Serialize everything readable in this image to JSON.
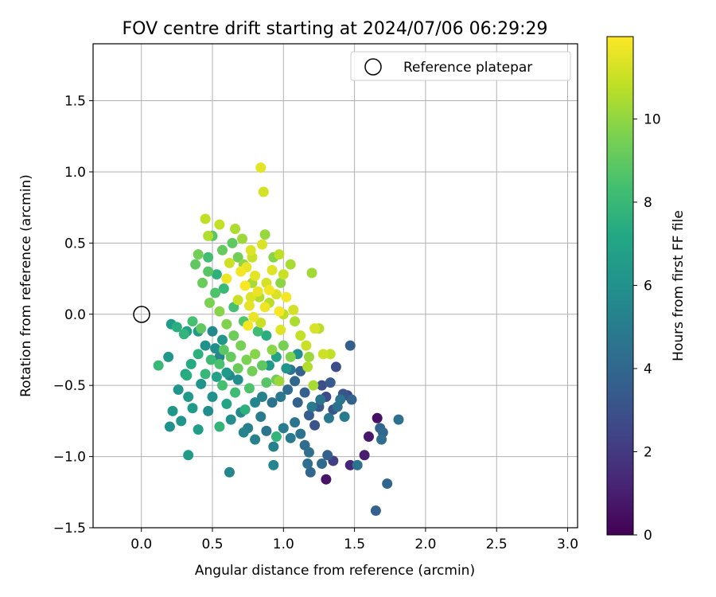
{
  "chart_data": {
    "type": "scatter",
    "title": "FOV centre drift starting at 2024/07/06 06:29:29",
    "xlabel": "Angular distance from reference (arcmin)",
    "ylabel": "Rotation from reference (arcmin)",
    "xlim": [
      -0.34,
      3.07
    ],
    "ylim": [
      -1.5,
      1.9
    ],
    "xticks": [
      "0.0",
      "0.5",
      "1.0",
      "1.5",
      "2.0",
      "2.5",
      "3.0"
    ],
    "yticks": [
      "−1.5",
      "−1.0",
      "−0.5",
      "0.0",
      "0.5",
      "1.0",
      "1.5"
    ],
    "grid": true,
    "legend": {
      "placement": "top-right",
      "entries": [
        "Reference platepar"
      ]
    },
    "reference_point": {
      "x": 0.0,
      "y": 0.0,
      "label": "Reference platepar"
    },
    "colorbar": {
      "label": "Hours from first FF file",
      "min": 0,
      "max": 11.98,
      "ticks": [
        "0",
        "2",
        "4",
        "6",
        "8",
        "10"
      ],
      "colormap": "viridis"
    },
    "points": [
      [
        0.84,
        1.03,
        11.5
      ],
      [
        0.86,
        0.86,
        11.2
      ],
      [
        0.45,
        0.67,
        10.8
      ],
      [
        0.47,
        0.55,
        10.6
      ],
      [
        0.55,
        0.63,
        10.9
      ],
      [
        0.66,
        0.6,
        10.5
      ],
      [
        0.71,
        0.53,
        10.2
      ],
      [
        0.87,
        0.56,
        10.1
      ],
      [
        0.85,
        0.49,
        11.3
      ],
      [
        0.77,
        0.45,
        11.4
      ],
      [
        0.97,
        0.42,
        10.8
      ],
      [
        0.78,
        0.4,
        11.0
      ],
      [
        0.62,
        0.36,
        11.1
      ],
      [
        0.74,
        0.33,
        11.6
      ],
      [
        0.7,
        0.3,
        11.8
      ],
      [
        0.92,
        0.31,
        11.4
      ],
      [
        0.8,
        0.27,
        11.5
      ],
      [
        0.6,
        0.25,
        11.7
      ],
      [
        0.88,
        0.22,
        11.2
      ],
      [
        0.73,
        0.2,
        11.9
      ],
      [
        0.82,
        0.16,
        11.6
      ],
      [
        0.95,
        0.14,
        11.3
      ],
      [
        1.02,
        0.12,
        11.8
      ],
      [
        0.68,
        0.1,
        11.0
      ],
      [
        0.76,
        0.06,
        11.5
      ],
      [
        0.87,
        0.05,
        11.7
      ],
      [
        0.97,
        0.02,
        11.9
      ],
      [
        1.07,
        0.03,
        11.2
      ],
      [
        0.79,
        -0.02,
        11.6
      ],
      [
        0.84,
        -0.06,
        11.0
      ],
      [
        0.75,
        -0.08,
        11.8
      ],
      [
        0.98,
        -0.11,
        11.4
      ],
      [
        1.2,
        0.29,
        10.3
      ],
      [
        1.25,
        -0.1,
        10.7
      ],
      [
        1.33,
        -0.28,
        10.9
      ],
      [
        1.17,
        -0.37,
        10.6
      ],
      [
        1.21,
        -0.5,
        10.4
      ],
      [
        0.97,
        -0.47,
        10.2
      ],
      [
        0.4,
        0.42,
        9.4
      ],
      [
        0.38,
        0.35,
        9.0
      ],
      [
        0.47,
        0.3,
        8.8
      ],
      [
        0.43,
        0.22,
        9.2
      ],
      [
        0.52,
        0.15,
        8.6
      ],
      [
        0.48,
        0.08,
        9.6
      ],
      [
        0.55,
        0.02,
        9.8
      ],
      [
        0.36,
        -0.05,
        8.4
      ],
      [
        0.42,
        -0.1,
        9.0
      ],
      [
        0.3,
        -0.14,
        7.8
      ],
      [
        0.25,
        -0.09,
        7.5
      ],
      [
        0.6,
        -0.07,
        9.7
      ],
      [
        0.65,
        -0.15,
        9.3
      ],
      [
        0.7,
        -0.22,
        9.5
      ],
      [
        0.58,
        -0.25,
        8.9
      ],
      [
        0.63,
        -0.3,
        9.1
      ],
      [
        0.55,
        -0.35,
        8.5
      ],
      [
        0.68,
        -0.38,
        9.2
      ],
      [
        0.74,
        -0.32,
        9.6
      ],
      [
        0.8,
        -0.28,
        9.8
      ],
      [
        0.78,
        -0.4,
        9.4
      ],
      [
        0.85,
        -0.36,
        9.0
      ],
      [
        0.92,
        -0.25,
        9.9
      ],
      [
        1.0,
        -0.22,
        9.5
      ],
      [
        1.05,
        -0.3,
        9.7
      ],
      [
        0.95,
        -0.46,
        9.3
      ],
      [
        0.88,
        -0.48,
        8.8
      ],
      [
        0.76,
        -0.52,
        8.6
      ],
      [
        0.66,
        -0.55,
        8.2
      ],
      [
        0.57,
        -0.5,
        8.4
      ],
      [
        0.45,
        -0.42,
        7.9
      ],
      [
        0.49,
        -0.32,
        8.1
      ],
      [
        0.4,
        -0.28,
        7.6
      ],
      [
        0.35,
        -0.35,
        7.3
      ],
      [
        0.31,
        -0.42,
        7.0
      ],
      [
        0.12,
        -0.36,
        8.0
      ],
      [
        0.32,
        -0.43,
        7.4
      ],
      [
        0.55,
        -0.79,
        7.8
      ],
      [
        0.95,
        -0.86,
        7.8
      ],
      [
        0.73,
        -0.67,
        7.6
      ],
      [
        0.6,
        -0.63,
        7.0
      ],
      [
        0.33,
        -0.58,
        6.4
      ],
      [
        0.26,
        -0.53,
        6.2
      ],
      [
        0.36,
        -0.66,
        6.5
      ],
      [
        0.22,
        -0.68,
        6.3
      ],
      [
        0.28,
        -0.75,
        6.2
      ],
      [
        0.2,
        -0.79,
        6.0
      ],
      [
        0.4,
        -0.81,
        6.6
      ],
      [
        0.33,
        -0.99,
        6.5
      ],
      [
        0.19,
        -0.3,
        6.3
      ],
      [
        0.21,
        -0.07,
        6.6
      ],
      [
        0.32,
        -0.12,
        6.8
      ],
      [
        0.42,
        -0.49,
        6.1
      ],
      [
        0.5,
        -0.58,
        6.0
      ],
      [
        0.47,
        -0.68,
        5.8
      ],
      [
        0.63,
        -0.74,
        5.9
      ],
      [
        0.62,
        -1.11,
        5.5
      ],
      [
        0.7,
        -0.69,
        5.6
      ],
      [
        0.72,
        -0.83,
        5.3
      ],
      [
        0.8,
        -0.88,
        5.2
      ],
      [
        0.75,
        -0.8,
        5.1
      ],
      [
        0.84,
        -0.72,
        5.0
      ],
      [
        0.88,
        -0.82,
        4.6
      ],
      [
        0.93,
        -0.93,
        5.2
      ],
      [
        0.93,
        -1.06,
        5.4
      ],
      [
        1.0,
        -0.8,
        5.0
      ],
      [
        1.05,
        -0.87,
        4.9
      ],
      [
        1.08,
        -0.76,
        4.7
      ],
      [
        1.12,
        -0.84,
        4.5
      ],
      [
        1.15,
        -0.92,
        4.2
      ],
      [
        1.18,
        -0.97,
        4.4
      ],
      [
        1.17,
        -1.05,
        4.3
      ],
      [
        1.19,
        -1.11,
        4.0
      ],
      [
        1.27,
        -1.05,
        4.1
      ],
      [
        1.31,
        -0.99,
        3.6
      ],
      [
        1.35,
        -1.03,
        2.2
      ],
      [
        1.3,
        -1.16,
        0.6
      ],
      [
        1.47,
        -1.06,
        1.3
      ],
      [
        1.52,
        -1.06,
        4.6
      ],
      [
        1.57,
        -0.99,
        1.0
      ],
      [
        1.6,
        -0.86,
        0.8
      ],
      [
        1.66,
        -0.73,
        0.5
      ],
      [
        1.68,
        -0.8,
        3.8
      ],
      [
        1.7,
        -0.83,
        4.0
      ],
      [
        1.69,
        -0.88,
        4.3
      ],
      [
        1.81,
        -0.74,
        4.4
      ],
      [
        1.73,
        -1.19,
        3.9
      ],
      [
        1.65,
        -1.38,
        3.7
      ],
      [
        1.47,
        -0.22,
        3.6
      ],
      [
        1.37,
        -0.37,
        2.8
      ],
      [
        1.45,
        -0.57,
        2.5
      ],
      [
        1.48,
        -0.6,
        3.8
      ],
      [
        1.42,
        -0.56,
        3.2
      ],
      [
        1.35,
        -0.67,
        3.0
      ],
      [
        1.3,
        -0.58,
        2.7
      ],
      [
        1.27,
        -0.5,
        2.9
      ],
      [
        1.33,
        -0.48,
        3.4
      ],
      [
        1.25,
        -0.65,
        3.3
      ],
      [
        1.18,
        -0.71,
        3.5
      ],
      [
        1.22,
        -0.78,
        3.1
      ],
      [
        1.1,
        -0.62,
        3.8
      ],
      [
        1.15,
        -0.55,
        3.6
      ],
      [
        1.08,
        -0.47,
        4.0
      ],
      [
        1.03,
        -0.53,
        4.3
      ],
      [
        1.12,
        -0.4,
        3.7
      ],
      [
        1.05,
        -0.39,
        4.5
      ],
      [
        0.98,
        -0.58,
        4.8
      ],
      [
        0.92,
        -0.62,
        4.6
      ],
      [
        0.85,
        -0.58,
        5.2
      ],
      [
        0.8,
        -0.62,
        5.4
      ],
      [
        0.4,
        -0.12,
        6.4
      ],
      [
        0.45,
        -0.22,
        6.0
      ],
      [
        0.52,
        -0.24,
        5.8
      ],
      [
        0.57,
        -0.18,
        6.3
      ],
      [
        0.5,
        -0.12,
        5.6
      ],
      [
        0.55,
        -0.3,
        5.5
      ],
      [
        0.62,
        -0.43,
        5.6
      ],
      [
        0.68,
        -0.46,
        5.9
      ],
      [
        0.6,
        -0.41,
        6.5
      ],
      [
        0.53,
        -0.44,
        6.8
      ],
      [
        1.4,
        -0.6,
        4.7
      ],
      [
        1.43,
        -0.72,
        5.0
      ],
      [
        1.38,
        -0.65,
        4.4
      ],
      [
        1.32,
        -0.73,
        4.8
      ],
      [
        1.26,
        -0.6,
        4.6
      ],
      [
        1.2,
        -0.65,
        4.9
      ],
      [
        0.9,
        -0.36,
        6.4
      ],
      [
        0.95,
        -0.3,
        6.9
      ],
      [
        1.02,
        -0.38,
        6.2
      ],
      [
        1.1,
        -0.28,
        6.0
      ],
      [
        0.88,
        -0.15,
        7.5
      ],
      [
        0.82,
        -0.12,
        8.2
      ],
      [
        0.72,
        -0.05,
        8.7
      ],
      [
        0.65,
        0.05,
        8.4
      ],
      [
        0.58,
        0.18,
        8.0
      ],
      [
        0.53,
        0.28,
        7.6
      ],
      [
        0.47,
        0.4,
        8.3
      ],
      [
        0.5,
        0.55,
        8.9
      ],
      [
        0.57,
        0.45,
        9.1
      ],
      [
        0.64,
        0.5,
        9.0
      ],
      [
        0.68,
        0.4,
        9.4
      ],
      [
        0.72,
        0.35,
        10.0
      ],
      [
        0.78,
        0.22,
        10.4
      ],
      [
        0.83,
        0.12,
        10.6
      ],
      [
        0.9,
        0.08,
        10.7
      ],
      [
        1.0,
        0.0,
        10.8
      ],
      [
        1.08,
        -0.05,
        10.5
      ],
      [
        1.12,
        -0.15,
        10.9
      ],
      [
        1.16,
        -0.22,
        11.0
      ],
      [
        1.28,
        -0.28,
        11.1
      ],
      [
        1.22,
        -0.1,
        11.3
      ],
      [
        1.18,
        -0.3,
        10.2
      ],
      [
        1.05,
        0.35,
        10.4
      ],
      [
        0.98,
        0.22,
        9.9
      ],
      [
        0.93,
        0.4,
        9.8
      ],
      [
        1.0,
        0.28,
        11.0
      ],
      [
        0.9,
        0.17,
        11.8
      ],
      [
        0.77,
        0.12,
        11.4
      ]
    ]
  }
}
